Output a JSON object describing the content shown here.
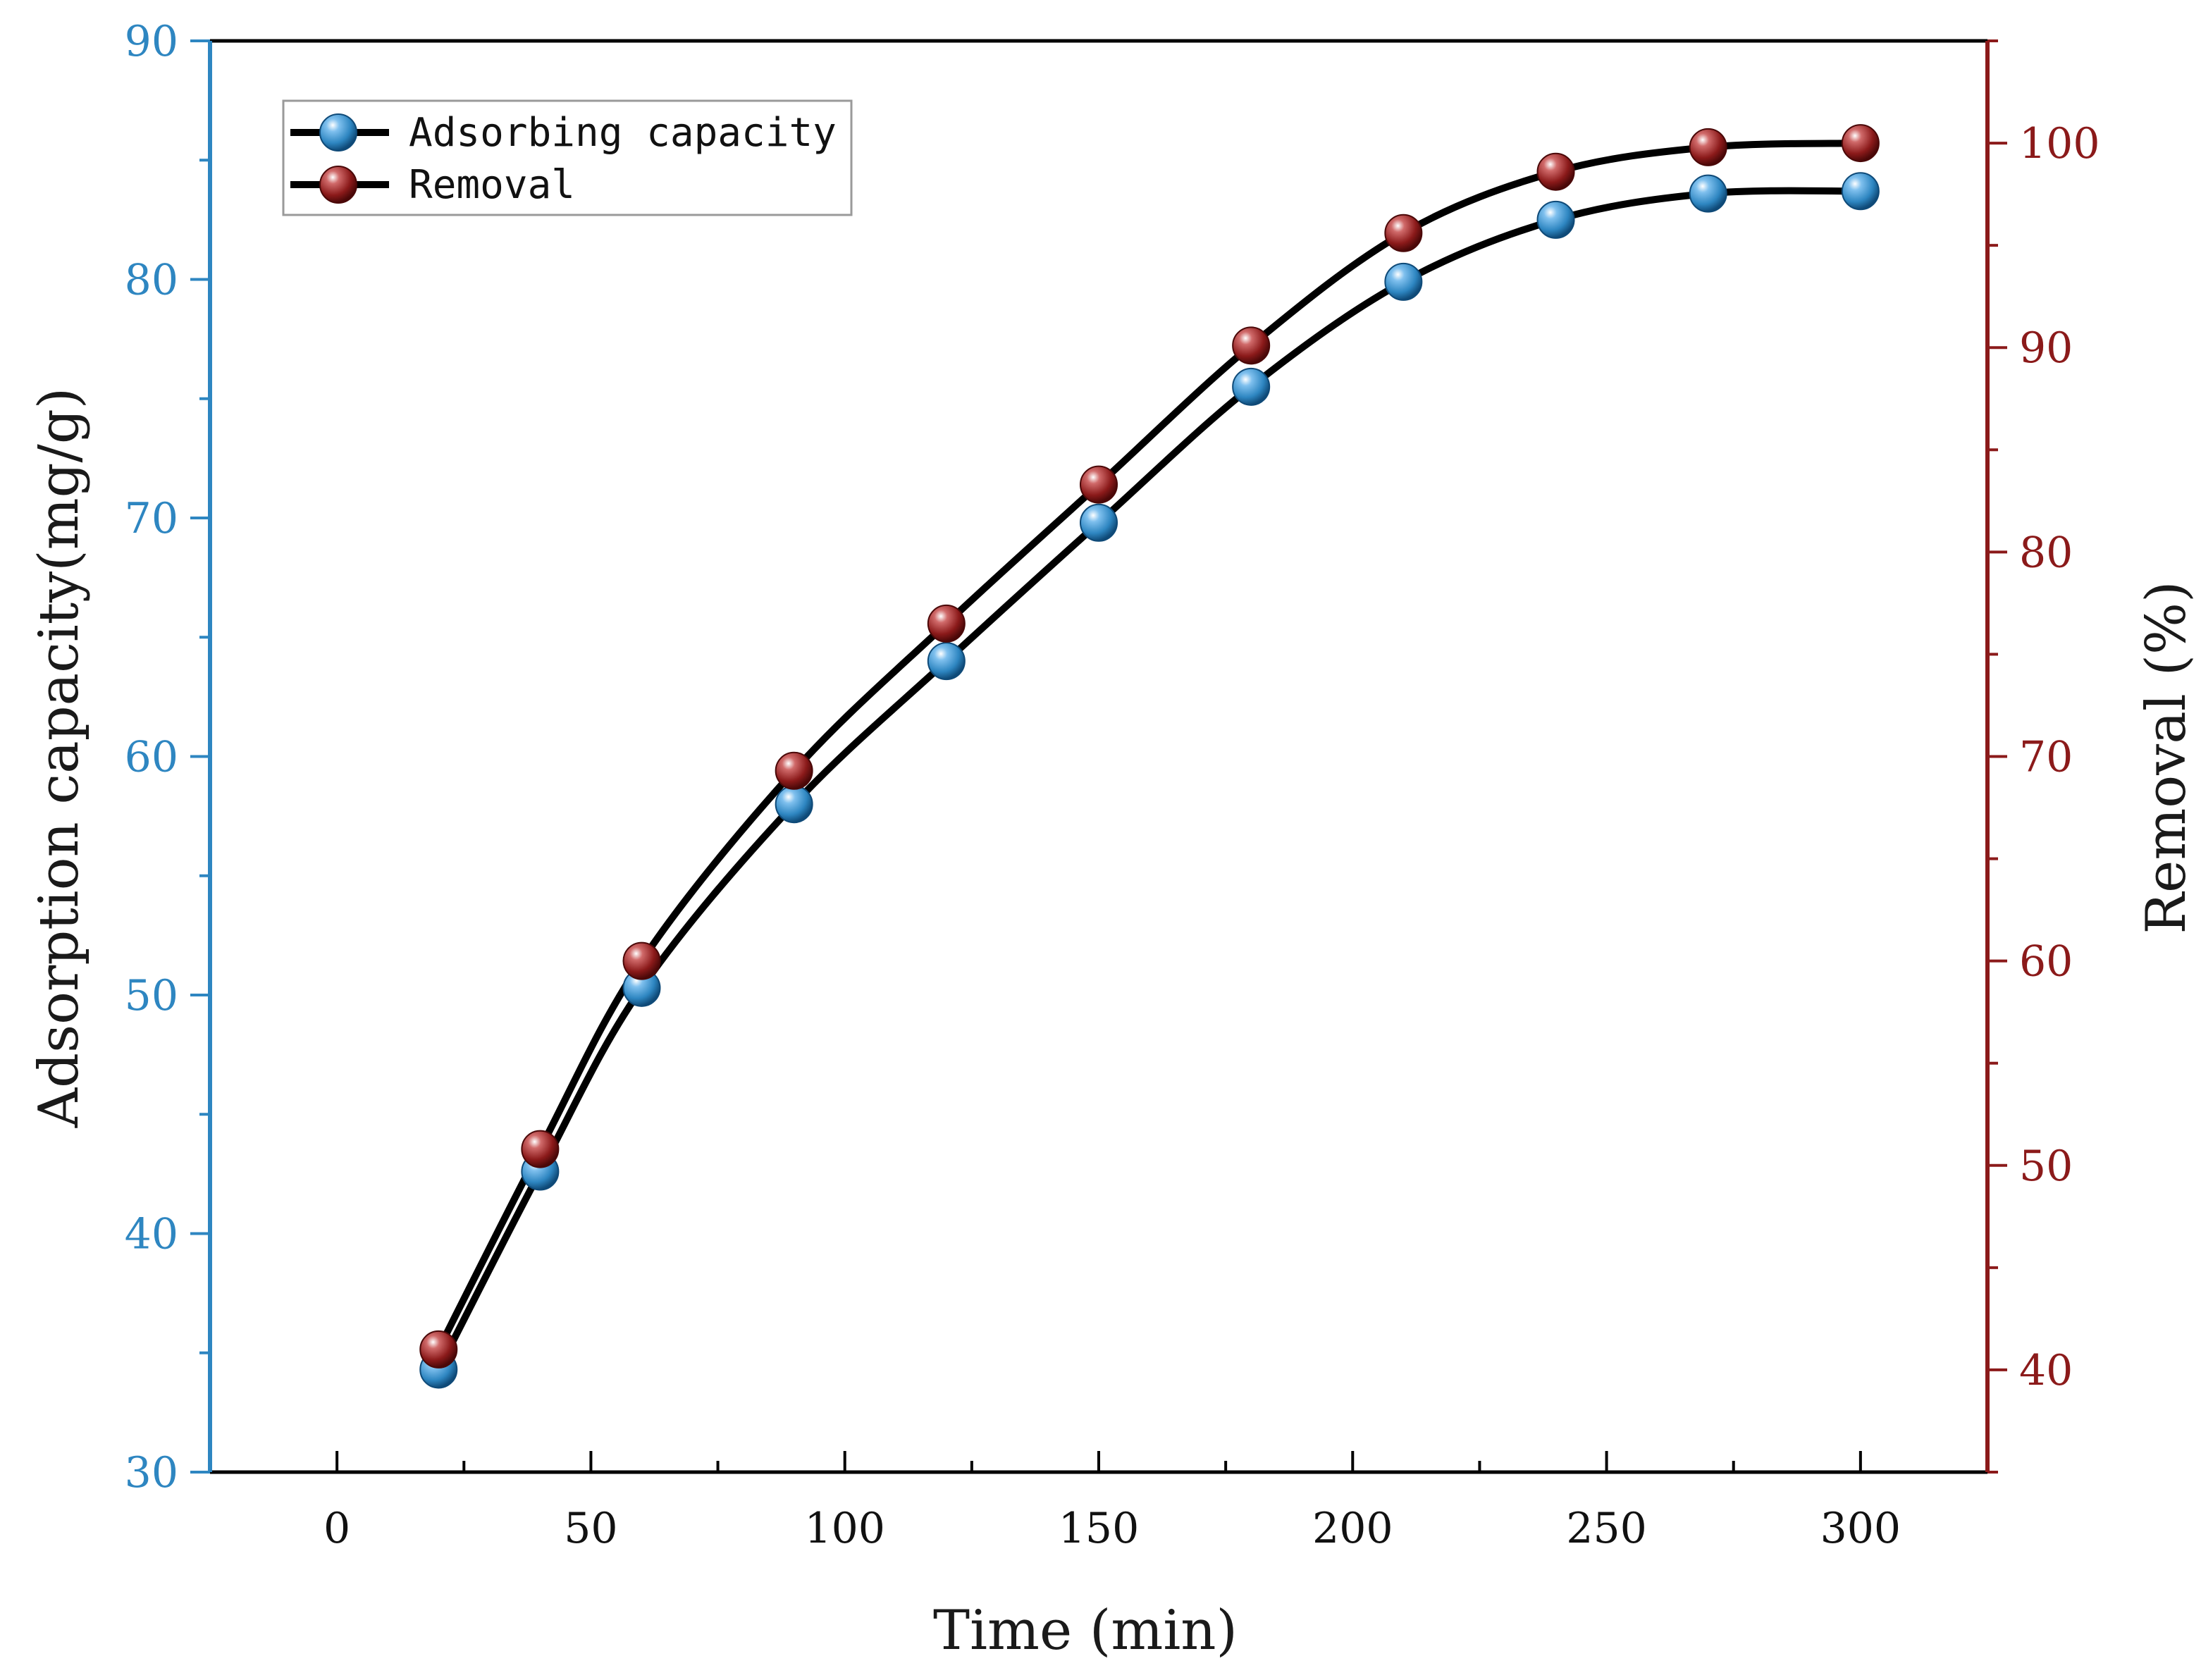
{
  "chart_data": {
    "type": "line",
    "xlabel": "Time (min)",
    "ylabel_left": "Adsorption capacity(mg/g)",
    "ylabel_right": "Removal (%)",
    "xlim": [
      -25,
      325
    ],
    "ylim_left": [
      30,
      90
    ],
    "ylim_right": [
      35,
      105
    ],
    "x_ticks": [
      0,
      50,
      100,
      150,
      200,
      250,
      300
    ],
    "x_tick_labels": [
      "0",
      "50",
      "100",
      "150",
      "200",
      "250",
      "300"
    ],
    "y_left_ticks": [
      30,
      40,
      50,
      60,
      70,
      80,
      90
    ],
    "y_left_tick_labels": [
      "30",
      "40",
      "50",
      "60",
      "70",
      "80",
      "90"
    ],
    "y_right_ticks": [
      40,
      50,
      60,
      70,
      80,
      90,
      100
    ],
    "y_right_tick_labels": [
      "40",
      "50",
      "60",
      "70",
      "80",
      "90",
      "100"
    ],
    "legend_position": "top-left",
    "grid": false,
    "series": [
      {
        "name": "Adsorbing capacity",
        "axis": "left",
        "marker_color": "#2e86c1",
        "x": [
          20,
          40,
          60,
          90,
          120,
          150,
          180,
          210,
          240,
          270,
          300
        ],
        "values": [
          34.3,
          42.6,
          50.3,
          58.0,
          64.0,
          69.8,
          75.5,
          79.9,
          82.5,
          83.6,
          83.7
        ]
      },
      {
        "name": "Removal",
        "axis": "right",
        "marker_color": "#8b1a1a",
        "x": [
          20,
          40,
          60,
          90,
          120,
          150,
          180,
          210,
          240,
          270,
          300
        ],
        "values": [
          41.0,
          50.8,
          60.0,
          69.3,
          76.5,
          83.3,
          90.1,
          95.6,
          98.6,
          99.8,
          100.0
        ]
      }
    ]
  },
  "colors": {
    "left_axis": "#2e86c1",
    "right_axis": "#8b1a1a",
    "line": "#000000"
  }
}
